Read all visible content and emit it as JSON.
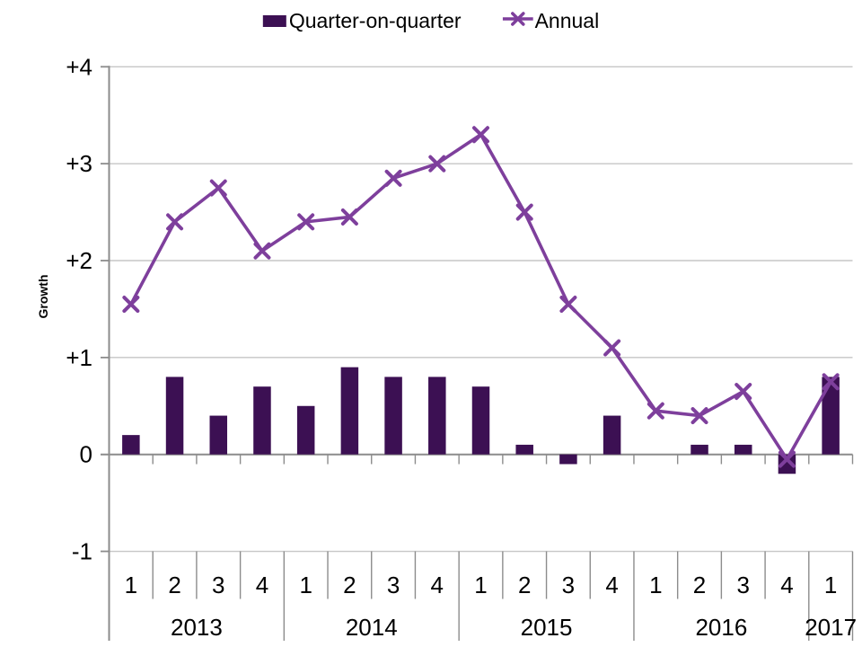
{
  "legend": {
    "bar_label": "Quarter-on-quarter",
    "line_label": "Annual"
  },
  "y_axis": {
    "title": "Growth",
    "tick_labels": [
      "+4",
      "+3",
      "+2",
      "+1",
      "0",
      "-1"
    ],
    "tick_values": [
      4,
      3,
      2,
      1,
      0,
      -1
    ],
    "min": -1,
    "max": 4
  },
  "x_axis": {
    "years": [
      {
        "label": "2013",
        "quarters": [
          "1",
          "2",
          "3",
          "4"
        ]
      },
      {
        "label": "2014",
        "quarters": [
          "1",
          "2",
          "3",
          "4"
        ]
      },
      {
        "label": "2015",
        "quarters": [
          "1",
          "2",
          "3",
          "4"
        ]
      },
      {
        "label": "2016",
        "quarters": [
          "1",
          "2",
          "3",
          "4"
        ]
      },
      {
        "label": "2017",
        "quarters": [
          "1"
        ]
      }
    ]
  },
  "colors": {
    "bar": "#3C1053",
    "line": "#7E3F9C",
    "gridline": "#C6C6C6",
    "axis": "#8C8C8C",
    "text": "#000000",
    "background": "#FFFFFF"
  },
  "chart_data": {
    "type": "bar+line combo",
    "x": [
      "2013 Q1",
      "2013 Q2",
      "2013 Q3",
      "2013 Q4",
      "2014 Q1",
      "2014 Q2",
      "2014 Q3",
      "2014 Q4",
      "2015 Q1",
      "2015 Q2",
      "2015 Q3",
      "2015 Q4",
      "2016 Q1",
      "2016 Q2",
      "2016 Q3",
      "2016 Q4",
      "2017 Q1"
    ],
    "series": [
      {
        "name": "Quarter-on-quarter",
        "type": "bar",
        "values": [
          0.2,
          0.8,
          0.4,
          0.7,
          0.5,
          0.9,
          0.8,
          0.8,
          0.7,
          0.1,
          -0.1,
          0.4,
          0.0,
          0.1,
          0.1,
          -0.2,
          0.8
        ]
      },
      {
        "name": "Annual",
        "type": "line",
        "marker": "x",
        "values": [
          1.55,
          2.4,
          2.75,
          2.1,
          2.4,
          2.45,
          2.85,
          3.0,
          3.3,
          2.5,
          1.55,
          1.1,
          0.45,
          0.4,
          0.65,
          -0.05,
          0.75
        ]
      }
    ],
    "title": "",
    "xlabel": "",
    "ylabel": "Growth",
    "ylim": [
      -1,
      4
    ],
    "grid": true,
    "legend_position": "top-center"
  }
}
